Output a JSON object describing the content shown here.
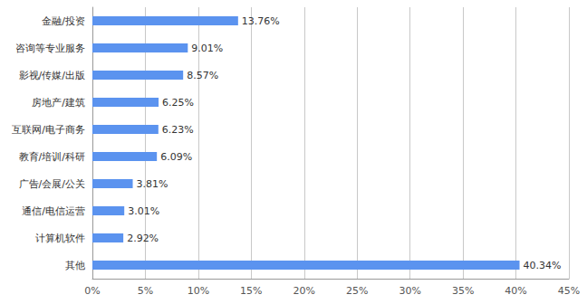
{
  "chart_data": {
    "type": "bar",
    "orientation": "horizontal",
    "categories": [
      "金融/投资",
      "咨询等专业服务",
      "影视/传媒/出版",
      "房地产/建筑",
      "互联网/电子商务",
      "教育/培训/科研",
      "广告/会展/公关",
      "通信/电信运营",
      "计算机软件",
      "其他"
    ],
    "values": [
      13.76,
      9.01,
      8.57,
      6.25,
      6.23,
      6.09,
      3.81,
      3.01,
      2.92,
      40.34
    ],
    "value_labels": [
      "13.76%",
      "9.01%",
      "8.57%",
      "6.25%",
      "6.23%",
      "6.09%",
      "3.81%",
      "3.01%",
      "2.92%",
      "40.34%"
    ],
    "data_labels": true,
    "color": "#5b93ef",
    "xlim": [
      0,
      45
    ],
    "xticks": [
      {
        "value": 0,
        "label": "0%"
      },
      {
        "value": 5,
        "label": "5%"
      },
      {
        "value": 10,
        "label": "10%"
      },
      {
        "value": 15,
        "label": "15%"
      },
      {
        "value": 20,
        "label": "20%"
      },
      {
        "value": 25,
        "label": "25%"
      },
      {
        "value": 30,
        "label": "30%"
      },
      {
        "value": 35,
        "label": "35%"
      },
      {
        "value": 40,
        "label": "40%"
      },
      {
        "value": 45,
        "label": "45%"
      }
    ],
    "grid": true
  }
}
